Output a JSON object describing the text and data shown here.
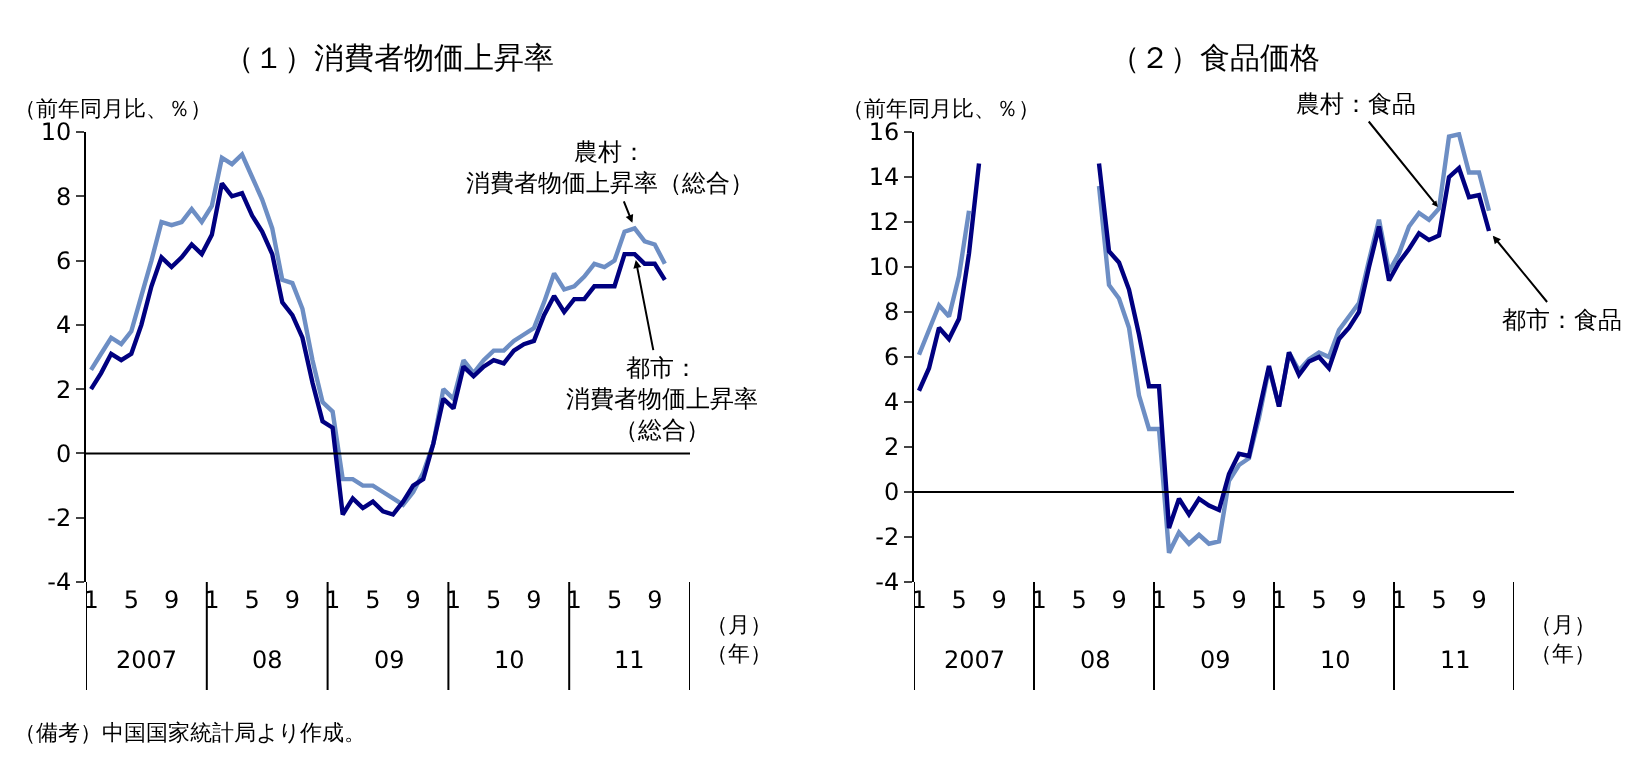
{
  "chart_data": [
    {
      "type": "line",
      "title": "（１）消費者物価上昇率",
      "ylabel": "（前年同月比、％）",
      "xlabel": "（月）（年）",
      "categories": [
        "1",
        null,
        null,
        null,
        "5",
        null,
        null,
        null,
        "9",
        null,
        null,
        null,
        "1",
        null,
        null,
        null,
        "5",
        null,
        null,
        null,
        "9",
        null,
        null,
        null,
        "1",
        null,
        null,
        null,
        "5",
        null,
        null,
        null,
        "9",
        null,
        null,
        null,
        "1",
        null,
        null,
        null,
        "5",
        null,
        null,
        null,
        "9",
        null,
        null,
        null,
        "1",
        null,
        null,
        null,
        "5",
        null,
        null,
        null,
        "9",
        null,
        null,
        null
      ],
      "ylim": [
        -4,
        10
      ],
      "yticks": [
        -4,
        -2,
        0,
        2,
        4,
        6,
        8,
        10
      ],
      "grid": false,
      "legend": false,
      "ref_lines": [
        {
          "axis": "y",
          "value": 0
        }
      ],
      "annotations": [
        "2007",
        "08",
        "09",
        "10",
        "11",
        "（備考）中国国家統計局より作成。"
      ],
      "series": [
        {
          "name": "農村：消費者物価上昇率（総合）",
          "color": "#6d8ec4",
          "values": [
            2.6,
            3.1,
            3.6,
            3.4,
            3.8,
            4.9,
            6.0,
            7.2,
            7.1,
            7.2,
            7.6,
            7.2,
            7.7,
            9.2,
            9.0,
            9.3,
            8.6,
            7.9,
            7.0,
            5.4,
            5.3,
            4.5,
            2.9,
            1.6,
            1.3,
            -0.8,
            -0.8,
            -1.0,
            -1.0,
            -1.2,
            -1.4,
            -1.6,
            -1.2,
            -0.6,
            0.3,
            2.0,
            1.7,
            2.9,
            2.5,
            2.9,
            3.2,
            3.2,
            3.5,
            3.7,
            3.9,
            4.7,
            5.6,
            5.1,
            5.2,
            5.5,
            5.9,
            5.8,
            6.0,
            6.9,
            7.0,
            6.6,
            6.5,
            5.9,
            null,
            null
          ]
        },
        {
          "name": "都市：消費者物価上昇率（総合）",
          "color": "#000080",
          "values": [
            2.0,
            2.5,
            3.1,
            2.9,
            3.1,
            4.0,
            5.2,
            6.1,
            5.8,
            6.1,
            6.5,
            6.2,
            6.8,
            8.4,
            8.0,
            8.1,
            7.4,
            6.9,
            6.2,
            4.7,
            4.3,
            3.6,
            2.2,
            1.0,
            0.8,
            -1.9,
            -1.4,
            -1.7,
            -1.5,
            -1.8,
            -1.9,
            -1.5,
            -1.0,
            -0.8,
            0.3,
            1.7,
            1.4,
            2.7,
            2.4,
            2.7,
            2.9,
            2.8,
            3.2,
            3.4,
            3.5,
            4.3,
            4.9,
            4.4,
            4.8,
            4.8,
            5.2,
            5.2,
            5.2,
            6.2,
            6.2,
            5.9,
            5.9,
            5.4,
            null,
            null
          ]
        }
      ]
    },
    {
      "type": "line",
      "title": "（２）食品価格",
      "ylabel": "（前年同月比、％）",
      "xlabel": "（月）（年）",
      "categories": [
        "1",
        null,
        null,
        null,
        "5",
        null,
        null,
        null,
        "9",
        null,
        null,
        null,
        "1",
        null,
        null,
        null,
        "5",
        null,
        null,
        null,
        "9",
        null,
        null,
        null,
        "1",
        null,
        null,
        null,
        "5",
        null,
        null,
        null,
        "9",
        null,
        null,
        null,
        "1",
        null,
        null,
        null,
        "5",
        null,
        null,
        null,
        "9",
        null,
        null,
        null,
        "1",
        null,
        null,
        null,
        "5",
        null,
        null,
        null,
        "9",
        null,
        null,
        null
      ],
      "ylim": [
        -4,
        16
      ],
      "yticks": [
        -4,
        -2,
        0,
        2,
        4,
        6,
        8,
        10,
        12,
        14,
        16
      ],
      "grid": false,
      "legend": false,
      "ref_lines": [
        {
          "axis": "y",
          "value": 0
        }
      ],
      "annotations": [
        "2007",
        "08",
        "09",
        "10",
        "11"
      ],
      "series": [
        {
          "name": "農村：食品",
          "color": "#6d8ec4",
          "values": [
            6.1,
            7.2,
            8.3,
            7.8,
            9.6,
            12.5,
            null,
            null,
            null,
            null,
            null,
            null,
            null,
            null,
            null,
            null,
            null,
            null,
            13.6,
            9.2,
            8.6,
            7.3,
            4.3,
            2.8,
            2.8,
            -2.7,
            -1.8,
            -2.3,
            -1.9,
            -2.3,
            -2.2,
            0.5,
            1.2,
            1.5,
            3.3,
            5.5,
            3.8,
            6.2,
            5.4,
            5.9,
            6.2,
            6.0,
            7.2,
            7.8,
            8.4,
            10.3,
            12.1,
            9.8,
            10.6,
            11.8,
            12.4,
            12.1,
            12.6,
            15.8,
            15.9,
            14.2,
            14.2,
            12.5,
            null,
            null
          ]
        },
        {
          "name": "都市：食品",
          "color": "#000080",
          "values": [
            4.5,
            5.5,
            7.3,
            6.8,
            7.7,
            10.6,
            14.6,
            null,
            null,
            null,
            null,
            null,
            null,
            null,
            null,
            null,
            null,
            null,
            14.6,
            10.7,
            10.2,
            9.0,
            7.0,
            4.7,
            4.7,
            -1.6,
            -0.3,
            -1.0,
            -0.3,
            -0.6,
            -0.8,
            0.8,
            1.7,
            1.6,
            3.6,
            5.6,
            3.8,
            6.2,
            5.2,
            5.8,
            6.0,
            5.5,
            6.8,
            7.3,
            8.0,
            10.0,
            11.8,
            9.4,
            10.2,
            10.8,
            11.5,
            11.2,
            11.4,
            14.0,
            14.4,
            13.1,
            13.2,
            11.6,
            null,
            null
          ]
        }
      ]
    }
  ]
}
